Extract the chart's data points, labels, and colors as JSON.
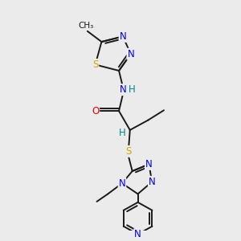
{
  "bg_color": "#ebebeb",
  "bond_color": "#1a1a1a",
  "atom_colors": {
    "N": "#0000ee",
    "S": "#ccaa00",
    "O": "#ee0000",
    "H": "#008888",
    "C": "#1a1a1a"
  }
}
